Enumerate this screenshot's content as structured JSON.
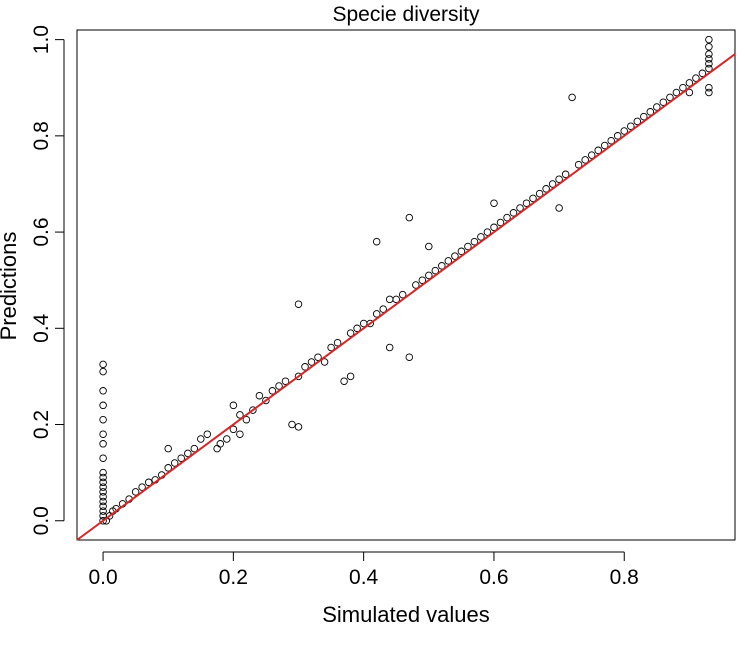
{
  "chart_data": {
    "type": "scatter",
    "title": "Specie diversity",
    "xlabel": "Simulated values",
    "ylabel": "Predictions",
    "xlim": [
      -0.04,
      0.97
    ],
    "ylim": [
      -0.04,
      1.02
    ],
    "x_ticks": [
      "0.0",
      "0.2",
      "0.4",
      "0.6",
      "0.8"
    ],
    "y_ticks": [
      "0.0",
      "0.2",
      "0.4",
      "0.6",
      "0.8",
      "1.0"
    ],
    "grid": false,
    "legend": "none",
    "colors": {
      "points": "#000000",
      "fit_line": "#d62728"
    },
    "fit_line": {
      "slope": 1.0,
      "intercept": 0.0,
      "x_range": [
        -0.04,
        0.97
      ]
    },
    "series": [
      {
        "points": [
          [
            0.0,
            0.0
          ],
          [
            0.0,
            0.01
          ],
          [
            0.0,
            0.02
          ],
          [
            0.0,
            0.03
          ],
          [
            0.0,
            0.04
          ],
          [
            0.0,
            0.05
          ],
          [
            0.0,
            0.06
          ],
          [
            0.0,
            0.07
          ],
          [
            0.0,
            0.08
          ],
          [
            0.0,
            0.09
          ],
          [
            0.0,
            0.1
          ],
          [
            0.0,
            0.13
          ],
          [
            0.0,
            0.16
          ],
          [
            0.0,
            0.18
          ],
          [
            0.0,
            0.21
          ],
          [
            0.0,
            0.24
          ],
          [
            0.0,
            0.27
          ],
          [
            0.0,
            0.31
          ],
          [
            0.0,
            0.325
          ],
          [
            0.005,
            0.0
          ],
          [
            0.01,
            0.01
          ],
          [
            0.015,
            0.02
          ],
          [
            0.02,
            0.025
          ],
          [
            0.03,
            0.035
          ],
          [
            0.04,
            0.045
          ],
          [
            0.05,
            0.06
          ],
          [
            0.06,
            0.07
          ],
          [
            0.07,
            0.08
          ],
          [
            0.08,
            0.085
          ],
          [
            0.09,
            0.095
          ],
          [
            0.1,
            0.11
          ],
          [
            0.1,
            0.15
          ],
          [
            0.11,
            0.12
          ],
          [
            0.12,
            0.13
          ],
          [
            0.13,
            0.14
          ],
          [
            0.14,
            0.15
          ],
          [
            0.15,
            0.17
          ],
          [
            0.16,
            0.18
          ],
          [
            0.175,
            0.15
          ],
          [
            0.18,
            0.16
          ],
          [
            0.19,
            0.17
          ],
          [
            0.2,
            0.19
          ],
          [
            0.2,
            0.24
          ],
          [
            0.21,
            0.18
          ],
          [
            0.21,
            0.22
          ],
          [
            0.22,
            0.21
          ],
          [
            0.23,
            0.23
          ],
          [
            0.24,
            0.26
          ],
          [
            0.25,
            0.25
          ],
          [
            0.26,
            0.27
          ],
          [
            0.27,
            0.28
          ],
          [
            0.28,
            0.29
          ],
          [
            0.29,
            0.2
          ],
          [
            0.3,
            0.3
          ],
          [
            0.3,
            0.195
          ],
          [
            0.3,
            0.45
          ],
          [
            0.31,
            0.32
          ],
          [
            0.32,
            0.33
          ],
          [
            0.33,
            0.34
          ],
          [
            0.34,
            0.33
          ],
          [
            0.35,
            0.36
          ],
          [
            0.36,
            0.37
          ],
          [
            0.37,
            0.29
          ],
          [
            0.38,
            0.3
          ],
          [
            0.38,
            0.39
          ],
          [
            0.39,
            0.4
          ],
          [
            0.4,
            0.41
          ],
          [
            0.41,
            0.41
          ],
          [
            0.42,
            0.58
          ],
          [
            0.42,
            0.43
          ],
          [
            0.43,
            0.44
          ],
          [
            0.44,
            0.46
          ],
          [
            0.44,
            0.36
          ],
          [
            0.45,
            0.46
          ],
          [
            0.46,
            0.47
          ],
          [
            0.47,
            0.34
          ],
          [
            0.47,
            0.63
          ],
          [
            0.48,
            0.49
          ],
          [
            0.49,
            0.5
          ],
          [
            0.5,
            0.51
          ],
          [
            0.5,
            0.57
          ],
          [
            0.51,
            0.52
          ],
          [
            0.52,
            0.53
          ],
          [
            0.53,
            0.54
          ],
          [
            0.54,
            0.55
          ],
          [
            0.55,
            0.56
          ],
          [
            0.56,
            0.57
          ],
          [
            0.57,
            0.58
          ],
          [
            0.58,
            0.59
          ],
          [
            0.59,
            0.6
          ],
          [
            0.6,
            0.61
          ],
          [
            0.6,
            0.66
          ],
          [
            0.61,
            0.62
          ],
          [
            0.62,
            0.63
          ],
          [
            0.63,
            0.64
          ],
          [
            0.64,
            0.65
          ],
          [
            0.65,
            0.66
          ],
          [
            0.66,
            0.67
          ],
          [
            0.67,
            0.68
          ],
          [
            0.68,
            0.69
          ],
          [
            0.69,
            0.7
          ],
          [
            0.7,
            0.71
          ],
          [
            0.7,
            0.65
          ],
          [
            0.71,
            0.72
          ],
          [
            0.72,
            0.88
          ],
          [
            0.73,
            0.74
          ],
          [
            0.74,
            0.75
          ],
          [
            0.75,
            0.76
          ],
          [
            0.76,
            0.77
          ],
          [
            0.77,
            0.78
          ],
          [
            0.78,
            0.79
          ],
          [
            0.79,
            0.8
          ],
          [
            0.8,
            0.81
          ],
          [
            0.81,
            0.82
          ],
          [
            0.82,
            0.83
          ],
          [
            0.83,
            0.84
          ],
          [
            0.84,
            0.85
          ],
          [
            0.85,
            0.86
          ],
          [
            0.86,
            0.87
          ],
          [
            0.87,
            0.88
          ],
          [
            0.88,
            0.89
          ],
          [
            0.89,
            0.9
          ],
          [
            0.9,
            0.91
          ],
          [
            0.9,
            0.89
          ],
          [
            0.91,
            0.92
          ],
          [
            0.92,
            0.93
          ],
          [
            0.93,
            0.89
          ],
          [
            0.93,
            0.9
          ],
          [
            0.93,
            0.94
          ],
          [
            0.93,
            0.95
          ],
          [
            0.93,
            0.96
          ],
          [
            0.93,
            0.97
          ],
          [
            0.93,
            0.985
          ],
          [
            0.93,
            1.0
          ]
        ]
      }
    ]
  }
}
